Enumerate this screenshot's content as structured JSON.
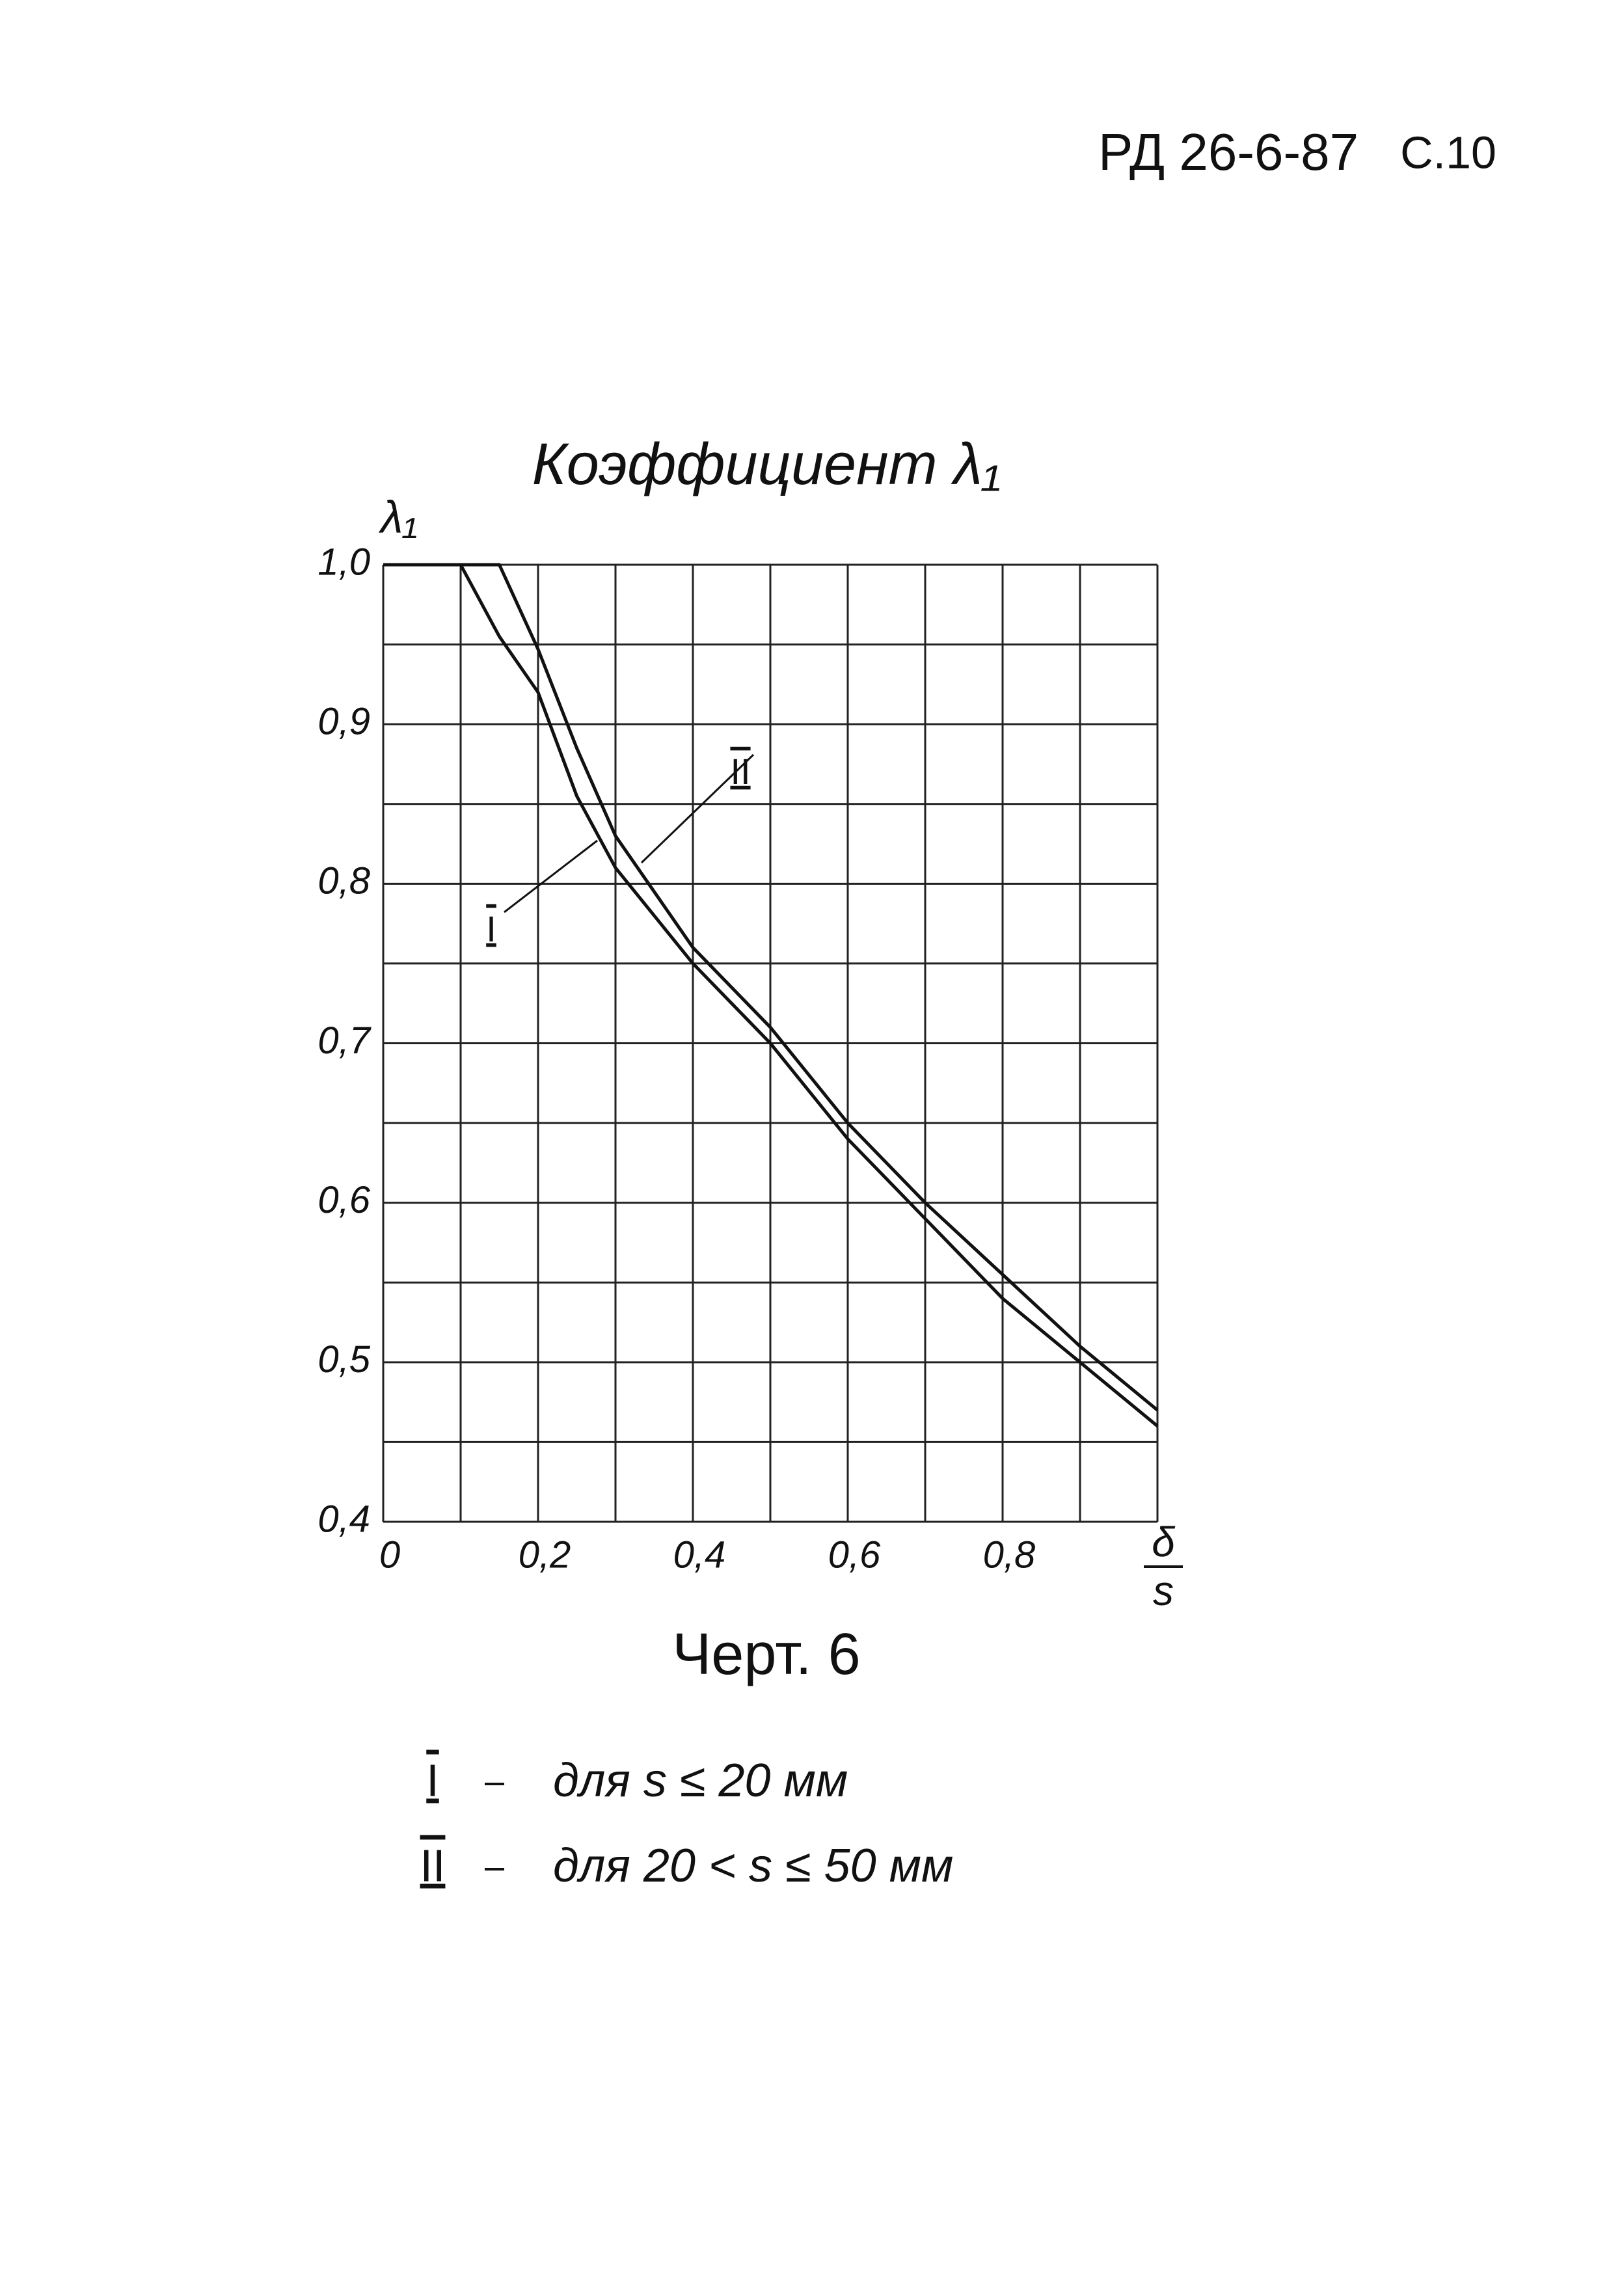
{
  "header": {
    "doc": "РД 26-6-87",
    "page": "С.10"
  },
  "chart_data": {
    "type": "line",
    "title": "Коэффициент λ₁",
    "y_label": "λ₁",
    "x_label": {
      "numerator": "δ",
      "denominator": "s"
    },
    "caption": "Черт. 6",
    "x": [
      0,
      0.1,
      0.15,
      0.2,
      0.25,
      0.3,
      0.4,
      0.5,
      0.6,
      0.7,
      0.8,
      0.9,
      1.0
    ],
    "series": [
      {
        "name": "I",
        "description": "для s ≤ 20 мм",
        "color": "#111111",
        "values": [
          1.0,
          1.0,
          0.955,
          0.92,
          0.855,
          0.81,
          0.75,
          0.7,
          0.64,
          0.59,
          0.54,
          0.5,
          0.46
        ]
      },
      {
        "name": "II",
        "description": "для 20 < s ≤ 50 мм",
        "color": "#111111",
        "values": [
          1.0,
          1.0,
          1.0,
          0.947,
          0.885,
          0.83,
          0.76,
          0.71,
          0.65,
          0.6,
          0.555,
          0.51,
          0.47
        ]
      }
    ],
    "xlim": [
      0,
      1.0
    ],
    "ylim": [
      0.4,
      1.0
    ],
    "xticks": [
      0,
      {
        "value": 0.2,
        "label": "0,2"
      },
      {
        "value": 0.4,
        "label": "0,4"
      },
      {
        "value": 0.6,
        "label": "0,6"
      },
      {
        "value": 0.8,
        "label": "0,8"
      }
    ],
    "yticks": [
      {
        "value": 0.4,
        "label": "0,4"
      },
      {
        "value": 0.5,
        "label": "0,5"
      },
      {
        "value": 0.6,
        "label": "0,6"
      },
      {
        "value": 0.7,
        "label": "0,7"
      },
      {
        "value": 0.8,
        "label": "0,8"
      },
      {
        "value": 0.9,
        "label": "0,9"
      },
      {
        "value": 1.0,
        "label": "1,0"
      }
    ],
    "xgrid": [
      0,
      0.1,
      0.2,
      0.3,
      0.4,
      0.5,
      0.6,
      0.7,
      0.8,
      0.9,
      1.0
    ],
    "ygrid": [
      0.4,
      0.45,
      0.5,
      0.55,
      0.6,
      0.65,
      0.7,
      0.75,
      0.8,
      0.85,
      0.9,
      0.95,
      1.0
    ],
    "grid": true
  }
}
